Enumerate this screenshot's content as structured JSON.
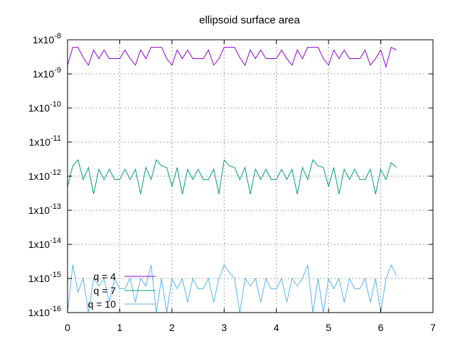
{
  "chart_data": {
    "type": "line",
    "title": "ellipsoid surface area",
    "xlabel": "",
    "ylabel": "",
    "xlim": [
      0,
      7
    ],
    "ylim": [
      1e-16,
      1e-08
    ],
    "yscale": "log",
    "grid": true,
    "legend_position": "bottom-left",
    "x_ticks": [
      "0",
      "1",
      "2",
      "3",
      "4",
      "5",
      "6",
      "7"
    ],
    "y_ticks": [
      {
        "base": "1x10",
        "exp": "-16",
        "value": 1e-16
      },
      {
        "base": "1x10",
        "exp": "-15",
        "value": 1e-15
      },
      {
        "base": "1x10",
        "exp": "-14",
        "value": 1e-14
      },
      {
        "base": "1x10",
        "exp": "-13",
        "value": 1e-13
      },
      {
        "base": "1x10",
        "exp": "-12",
        "value": 1e-12
      },
      {
        "base": "1x10",
        "exp": "-11",
        "value": 1e-11
      },
      {
        "base": "1x10",
        "exp": "-10",
        "value": 1e-10
      },
      {
        "base": "1x10",
        "exp": "-9",
        "value": 1e-09
      },
      {
        "base": "1x10",
        "exp": "-8",
        "value": 1e-08
      }
    ],
    "x": [
      0,
      0.1,
      0.2,
      0.3,
      0.4,
      0.5,
      0.6,
      0.7,
      0.8,
      0.9,
      1.0,
      1.1,
      1.2,
      1.3,
      1.4,
      1.5,
      1.6,
      1.7,
      1.8,
      1.9,
      2.0,
      2.1,
      2.2,
      2.3,
      2.4,
      2.5,
      2.6,
      2.7,
      2.8,
      2.9,
      3.0,
      3.1,
      3.2,
      3.3,
      3.4,
      3.5,
      3.6,
      3.7,
      3.8,
      3.9,
      4.0,
      4.1,
      4.2,
      4.3,
      4.4,
      4.5,
      4.6,
      4.7,
      4.8,
      4.9,
      5.0,
      5.1,
      5.2,
      5.3,
      5.4,
      5.5,
      5.6,
      5.7,
      5.8,
      5.9,
      6.0,
      6.1,
      6.2,
      6.3
    ],
    "series": [
      {
        "name": "q = 4",
        "color": "#9400d3",
        "values": [
          1.8e-09,
          6e-09,
          6e-09,
          3e-09,
          1.8e-09,
          5e-09,
          2.8e-09,
          5e-09,
          2.8e-09,
          2.8e-09,
          2.8e-09,
          5e-09,
          2.8e-09,
          1.8e-09,
          5e-09,
          2.8e-09,
          6e-09,
          6e-09,
          6e-09,
          2.8e-09,
          1.8e-09,
          5e-09,
          2.8e-09,
          5e-09,
          2.8e-09,
          2.8e-09,
          2.8e-09,
          5e-09,
          1.8e-09,
          2.8e-09,
          6e-09,
          6e-09,
          6e-09,
          3e-09,
          1.8e-09,
          5e-09,
          2.8e-09,
          5e-09,
          2.8e-09,
          2.8e-09,
          2.8e-09,
          5e-09,
          2.8e-09,
          1.8e-09,
          5e-09,
          2.8e-09,
          6e-09,
          6e-09,
          6e-09,
          2.8e-09,
          1.8e-09,
          5e-09,
          2.8e-09,
          5e-09,
          2.8e-09,
          2.8e-09,
          2.8e-09,
          5e-09,
          1.8e-09,
          2.8e-09,
          5e-09,
          1.6e-09,
          6e-09,
          5e-09
        ]
      },
      {
        "name": "q = 7",
        "color": "#009e73",
        "values": [
          5e-13,
          2e-12,
          3e-12,
          8e-13,
          1.8e-12,
          3e-13,
          1.6e-12,
          8e-13,
          1.6e-12,
          8e-13,
          8e-13,
          1.6e-12,
          8e-13,
          1.6e-12,
          3e-13,
          1.8e-12,
          8e-13,
          3e-12,
          2e-12,
          1.8e-12,
          5e-13,
          1.8e-12,
          3e-13,
          1.6e-12,
          8e-13,
          1.6e-12,
          8e-13,
          8e-13,
          1.6e-12,
          3e-13,
          3e-12,
          2e-12,
          1.8e-12,
          8e-13,
          1.8e-12,
          3e-13,
          1.6e-12,
          8e-13,
          1.6e-12,
          8e-13,
          8e-13,
          1.6e-12,
          8e-13,
          1.6e-12,
          3e-13,
          1.8e-12,
          8e-13,
          3e-12,
          2e-12,
          1.8e-12,
          5e-13,
          1.8e-12,
          3e-13,
          1.6e-12,
          8e-13,
          1.6e-12,
          8e-13,
          8e-13,
          1.6e-12,
          3e-13,
          1.6e-12,
          8e-13,
          2.5e-12,
          1.8e-12
        ]
      },
      {
        "name": "q = 10",
        "color": "#56b4e9",
        "values": [
          1e-16,
          2.5e-15,
          4e-16,
          1e-15,
          1e-16,
          1e-15,
          6e-16,
          1e-15,
          2e-16,
          1e-15,
          5e-16,
          5e-16,
          1e-15,
          2e-16,
          1e-15,
          6e-16,
          2.5e-15,
          1e-16,
          1e-15,
          1e-16,
          1e-15,
          5e-16,
          1e-15,
          2e-16,
          1e-15,
          5e-16,
          5e-16,
          1e-15,
          2e-16,
          1e-15,
          2.5e-15,
          1.5e-15,
          1e-15,
          1e-16,
          1e-15,
          6e-16,
          1e-15,
          2e-16,
          1e-15,
          5e-16,
          5e-16,
          1e-15,
          2e-16,
          1e-15,
          6e-16,
          1e-15,
          2.5e-15,
          1e-16,
          1e-15,
          1e-16,
          1e-15,
          5e-16,
          1e-15,
          2e-16,
          1e-15,
          5e-16,
          5e-16,
          1e-15,
          2e-16,
          1e-15,
          1e-16,
          1e-15,
          2.5e-15,
          1.2e-15
        ]
      }
    ]
  }
}
